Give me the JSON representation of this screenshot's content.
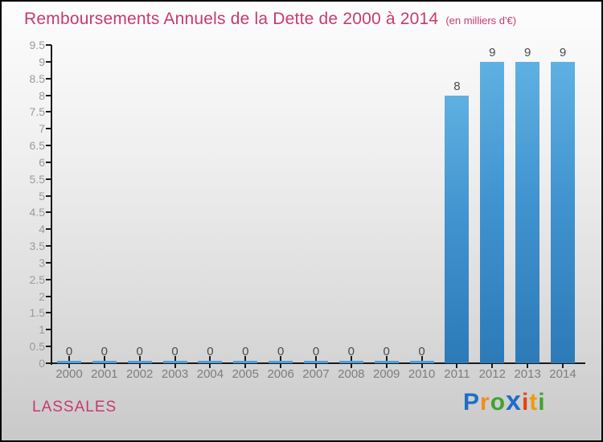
{
  "header": {
    "title": "Remboursements Annuels de la Dette de 2000 à 2014",
    "subtitle": "(en milliers d'€)",
    "title_color": "#c53a70"
  },
  "footer": {
    "org": "LASSALES",
    "logo_text": "Proxiti",
    "logo_letters": [
      {
        "ch": "P",
        "color": "#1d6ec7",
        "heavy": false
      },
      {
        "ch": "r",
        "color": "#f08c1e",
        "heavy": false
      },
      {
        "ch": "o",
        "color": "#3fa32e",
        "heavy": false
      },
      {
        "ch": "x",
        "color": "#1d6ec7",
        "heavy": true
      },
      {
        "ch": "i",
        "color": "#e2430e",
        "heavy": false
      },
      {
        "ch": "t",
        "color": "#f2990c",
        "heavy": false
      },
      {
        "ch": "i",
        "color": "#3fa32e",
        "heavy": false
      }
    ]
  },
  "chart_data": {
    "type": "bar",
    "title": "Remboursements Annuels de la Dette de 2000 à 2014",
    "subtitle": "(en milliers d'€)",
    "categories": [
      "2000",
      "2001",
      "2002",
      "2003",
      "2004",
      "2005",
      "2006",
      "2007",
      "2008",
      "2009",
      "2010",
      "2011",
      "2012",
      "2013",
      "2014"
    ],
    "values": [
      0,
      0,
      0,
      0,
      0,
      0,
      0,
      0,
      0,
      0,
      0,
      8,
      9,
      9,
      9
    ],
    "value_labels": [
      "0",
      "0",
      "0",
      "0",
      "0",
      "0",
      "0",
      "0",
      "0",
      "0",
      "0",
      "8",
      "9",
      "9",
      "9"
    ],
    "xlabel": "",
    "ylabel": "",
    "ylim": [
      0,
      9.5
    ],
    "ytick_step": 0.5,
    "grid": false,
    "legend": false,
    "bar_color_top": "#5fb0e2",
    "bar_color_bottom": "#2c7ab8",
    "axis_color": "#1a1a1a",
    "tick_label_color": "#9a9a9a",
    "category_label_color": "#7d7d7d",
    "value_label_color": "#4a4a4a"
  }
}
